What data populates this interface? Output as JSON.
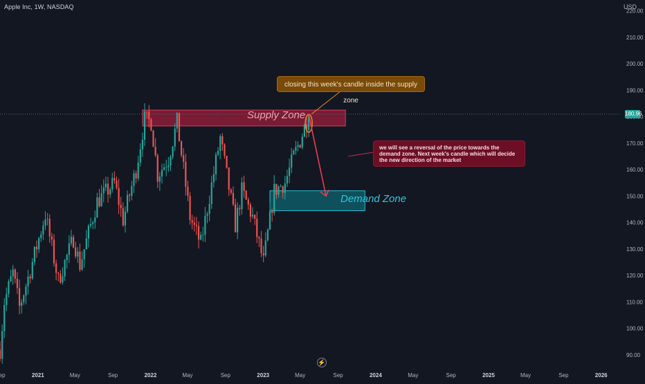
{
  "header": {
    "symbol": "Apple Inc, 1W, NASDAQ",
    "currency": "USD",
    "last_price": "180.96"
  },
  "colors": {
    "background": "#131722",
    "up": "#26a69a",
    "down": "#ef5350",
    "supply_zone": "#9c1e3c",
    "demand_zone": "#0e5a66"
  },
  "annotations": {
    "supply_zone": "Supply Zone",
    "demand_zone": "Demand Zone",
    "callout_top": "closing this week's candle inside the supply zone",
    "callout_right": "we will see a reversal of the price towards the demand zone. Next week's candle which will decide the new direction of the market"
  },
  "icons": {
    "bottom": "flash-icon"
  },
  "chart_data": {
    "type": "candlestick",
    "symbol": "AAPL",
    "interval": "1W",
    "x_range": [
      "2020-08-31",
      "2026-03-01"
    ],
    "y_range": [
      85,
      222
    ],
    "y_ticks": [
      90,
      100,
      110,
      120,
      130,
      140,
      150,
      160,
      170,
      180,
      190,
      200,
      210,
      220
    ],
    "x_ticks": [
      {
        "label": "Sep",
        "date": "2020-09-01"
      },
      {
        "label": "2021",
        "date": "2021-01-01"
      },
      {
        "label": "May",
        "date": "2021-05-01"
      },
      {
        "label": "Sep",
        "date": "2021-09-01"
      },
      {
        "label": "2022",
        "date": "2022-01-01"
      },
      {
        "label": "May",
        "date": "2022-05-01"
      },
      {
        "label": "Sep",
        "date": "2022-09-01"
      },
      {
        "label": "2023",
        "date": "2023-01-01"
      },
      {
        "label": "May",
        "date": "2023-05-01"
      },
      {
        "label": "Sep",
        "date": "2023-09-01"
      },
      {
        "label": "2024",
        "date": "2024-01-01"
      },
      {
        "label": "May",
        "date": "2024-05-01"
      },
      {
        "label": "Sep",
        "date": "2024-09-01"
      },
      {
        "label": "2025",
        "date": "2025-01-01"
      },
      {
        "label": "May",
        "date": "2025-05-01"
      },
      {
        "label": "Sep",
        "date": "2025-09-01"
      },
      {
        "label": "2026",
        "date": "2026-01-01"
      }
    ],
    "price_path": [
      [
        "2020-08-31",
        92
      ],
      [
        "2020-09-14",
        110
      ],
      [
        "2020-10-12",
        121
      ],
      [
        "2020-11-02",
        108
      ],
      [
        "2020-12-07",
        122
      ],
      [
        "2021-01-25",
        143
      ],
      [
        "2021-03-08",
        118
      ],
      [
        "2021-04-26",
        134
      ],
      [
        "2021-05-17",
        124
      ],
      [
        "2021-07-12",
        148
      ],
      [
        "2021-09-06",
        155
      ],
      [
        "2021-10-04",
        141
      ],
      [
        "2021-11-15",
        160
      ],
      [
        "2021-12-13",
        179
      ],
      [
        "2022-01-03",
        178
      ],
      [
        "2022-01-24",
        158
      ],
      [
        "2022-02-28",
        164
      ],
      [
        "2022-03-28",
        178
      ],
      [
        "2022-05-09",
        142
      ],
      [
        "2022-06-13",
        132
      ],
      [
        "2022-08-15",
        172
      ],
      [
        "2022-10-03",
        139
      ],
      [
        "2022-10-24",
        152
      ],
      [
        "2022-11-28",
        142
      ],
      [
        "2023-01-02",
        125
      ],
      [
        "2023-02-06",
        152
      ],
      [
        "2023-03-13",
        155
      ],
      [
        "2023-04-10",
        165
      ],
      [
        "2023-05-01",
        171
      ],
      [
        "2023-05-29",
        180.96
      ]
    ],
    "last_price": 180.96,
    "last_price_line": 180.96,
    "zones": [
      {
        "name": "Supply Zone",
        "y_low": 176.5,
        "y_high": 182.5,
        "x_start": "2021-12-06",
        "x_end": "2023-09-25"
      },
      {
        "name": "Demand Zone",
        "y_low": 144.5,
        "y_high": 152,
        "x_start": "2023-01-23",
        "x_end": "2023-11-27"
      }
    ],
    "projection": [
      [
        "2023-05-29",
        181
      ],
      [
        "2023-06-12",
        173
      ],
      [
        "2023-07-24",
        150
      ]
    ],
    "grid": false
  }
}
